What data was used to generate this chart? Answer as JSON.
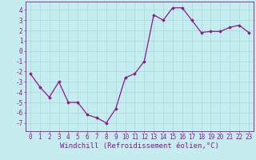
{
  "x": [
    0,
    1,
    2,
    3,
    4,
    5,
    6,
    7,
    8,
    9,
    10,
    11,
    12,
    13,
    14,
    15,
    16,
    17,
    18,
    19,
    20,
    21,
    22,
    23
  ],
  "y": [
    -2.2,
    -3.5,
    -4.5,
    -3.0,
    -5.0,
    -5.0,
    -6.2,
    -6.5,
    -7.0,
    -5.6,
    -2.6,
    -2.2,
    -1.0,
    3.5,
    3.0,
    4.2,
    4.2,
    3.0,
    1.8,
    1.9,
    1.9,
    2.3,
    2.5,
    1.8
  ],
  "line_color": "#8b1a8b",
  "marker": "D",
  "marker_size": 1.8,
  "bg_color": "#c5ecee",
  "grid_color": "#b0dde0",
  "xlabel": "Windchill (Refroidissement éolien,°C)",
  "xlabel_fontsize": 6.5,
  "tick_fontsize": 5.5,
  "ylim": [
    -7.8,
    4.8
  ],
  "xlim": [
    -0.5,
    23.5
  ],
  "yticks": [
    -7,
    -6,
    -5,
    -4,
    -3,
    -2,
    -1,
    0,
    1,
    2,
    3,
    4
  ],
  "xticks": [
    0,
    1,
    2,
    3,
    4,
    5,
    6,
    7,
    8,
    9,
    10,
    11,
    12,
    13,
    14,
    15,
    16,
    17,
    18,
    19,
    20,
    21,
    22,
    23
  ],
  "xtick_labels": [
    "0",
    "1",
    "2",
    "3",
    "4",
    "5",
    "6",
    "7",
    "8",
    "9",
    "10",
    "11",
    "12",
    "13",
    "14",
    "15",
    "16",
    "17",
    "18",
    "19",
    "20",
    "21",
    "22",
    "23"
  ],
  "spine_color": "#8b1a8b",
  "line_width": 0.9
}
